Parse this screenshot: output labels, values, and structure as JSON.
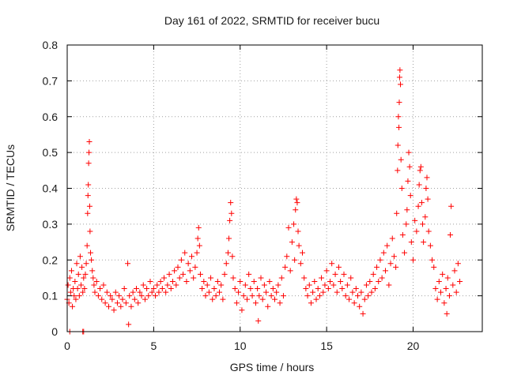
{
  "chart_data": {
    "type": "scatter",
    "title": "Day 161 of 2022, SRMTID for receiver bucu",
    "xlabel": "GPS time / hours",
    "ylabel": "SRMTID / TECUs",
    "xlim": [
      0,
      24
    ],
    "ylim": [
      0,
      0.8
    ],
    "xticks": [
      0,
      5,
      10,
      15,
      20
    ],
    "yticks": [
      0,
      0.1,
      0.2,
      0.3,
      0.4,
      0.5,
      0.6,
      0.7,
      0.8
    ],
    "xtick_labels": [
      "0",
      "5",
      "10",
      "15",
      "20"
    ],
    "ytick_labels": [
      "0",
      "0.1",
      "0.2",
      "0.3",
      "0.4",
      "0.5",
      "0.6",
      "0.7",
      "0.8"
    ],
    "grid": true,
    "marker": "+",
    "color": "#ff0000",
    "series": [
      {
        "name": "SRMTID",
        "points": [
          [
            0.0,
            0.09
          ],
          [
            0.05,
            0.13
          ],
          [
            0.1,
            0.08
          ],
          [
            0.15,
            0.15
          ],
          [
            0.2,
            0.11
          ],
          [
            0.25,
            0.17
          ],
          [
            0.3,
            0.07
          ],
          [
            0.35,
            0.12
          ],
          [
            0.4,
            0.1
          ],
          [
            0.45,
            0.14
          ],
          [
            0.5,
            0.09
          ],
          [
            0.55,
            0.19
          ],
          [
            0.6,
            0.12
          ],
          [
            0.65,
            0.16
          ],
          [
            0.7,
            0.1
          ],
          [
            0.75,
            0.21
          ],
          [
            0.8,
            0.13
          ],
          [
            0.85,
            0.18
          ],
          [
            0.9,
            0.11
          ],
          [
            0.95,
            0.15
          ],
          [
            1.0,
            0.12
          ],
          [
            1.05,
            0.16
          ],
          [
            0.15,
            0.0
          ],
          [
            0.9,
            0.0
          ],
          [
            0.95,
            0.0
          ],
          [
            1.1,
            0.19
          ],
          [
            1.15,
            0.24
          ],
          [
            1.18,
            0.33
          ],
          [
            1.2,
            0.38
          ],
          [
            1.22,
            0.41
          ],
          [
            1.24,
            0.47
          ],
          [
            1.26,
            0.5
          ],
          [
            1.28,
            0.53
          ],
          [
            1.3,
            0.35
          ],
          [
            1.32,
            0.28
          ],
          [
            1.35,
            0.22
          ],
          [
            1.4,
            0.2
          ],
          [
            1.45,
            0.17
          ],
          [
            1.5,
            0.15
          ],
          [
            1.55,
            0.13
          ],
          [
            1.6,
            0.11
          ],
          [
            1.7,
            0.14
          ],
          [
            1.8,
            0.1
          ],
          [
            1.9,
            0.12
          ],
          [
            2.0,
            0.09
          ],
          [
            2.1,
            0.13
          ],
          [
            2.2,
            0.08
          ],
          [
            2.3,
            0.11
          ],
          [
            2.4,
            0.07
          ],
          [
            2.5,
            0.1
          ],
          [
            2.6,
            0.09
          ],
          [
            2.7,
            0.06
          ],
          [
            2.8,
            0.11
          ],
          [
            2.9,
            0.08
          ],
          [
            3.0,
            0.1
          ],
          [
            3.1,
            0.07
          ],
          [
            3.2,
            0.09
          ],
          [
            3.3,
            0.12
          ],
          [
            3.4,
            0.08
          ],
          [
            3.5,
            0.19
          ],
          [
            3.55,
            0.02
          ],
          [
            3.6,
            0.1
          ],
          [
            3.7,
            0.07
          ],
          [
            3.8,
            0.11
          ],
          [
            3.9,
            0.09
          ],
          [
            4.0,
            0.12
          ],
          [
            4.1,
            0.08
          ],
          [
            4.2,
            0.11
          ],
          [
            4.3,
            0.1
          ],
          [
            4.4,
            0.13
          ],
          [
            4.5,
            0.09
          ],
          [
            4.6,
            0.12
          ],
          [
            4.7,
            0.1
          ],
          [
            4.8,
            0.14
          ],
          [
            4.9,
            0.11
          ],
          [
            5.0,
            0.12
          ],
          [
            5.1,
            0.1
          ],
          [
            5.2,
            0.13
          ],
          [
            5.3,
            0.11
          ],
          [
            5.4,
            0.14
          ],
          [
            5.5,
            0.12
          ],
          [
            5.6,
            0.15
          ],
          [
            5.7,
            0.11
          ],
          [
            5.8,
            0.13
          ],
          [
            5.9,
            0.16
          ],
          [
            6.0,
            0.12
          ],
          [
            6.1,
            0.14
          ],
          [
            6.2,
            0.17
          ],
          [
            6.3,
            0.13
          ],
          [
            6.4,
            0.18
          ],
          [
            6.5,
            0.15
          ],
          [
            6.6,
            0.2
          ],
          [
            6.7,
            0.16
          ],
          [
            6.8,
            0.22
          ],
          [
            6.9,
            0.14
          ],
          [
            7.0,
            0.19
          ],
          [
            7.1,
            0.17
          ],
          [
            7.2,
            0.21
          ],
          [
            7.3,
            0.15
          ],
          [
            7.4,
            0.18
          ],
          [
            7.5,
            0.22
          ],
          [
            7.55,
            0.26
          ],
          [
            7.6,
            0.29
          ],
          [
            7.65,
            0.24
          ],
          [
            7.7,
            0.16
          ],
          [
            7.8,
            0.12
          ],
          [
            7.9,
            0.14
          ],
          [
            8.0,
            0.1
          ],
          [
            8.1,
            0.13
          ],
          [
            8.2,
            0.11
          ],
          [
            8.3,
            0.15
          ],
          [
            8.4,
            0.09
          ],
          [
            8.5,
            0.12
          ],
          [
            8.6,
            0.1
          ],
          [
            8.7,
            0.14
          ],
          [
            8.8,
            0.11
          ],
          [
            8.9,
            0.13
          ],
          [
            9.0,
            0.09
          ],
          [
            9.1,
            0.16
          ],
          [
            9.2,
            0.19
          ],
          [
            9.3,
            0.22
          ],
          [
            9.35,
            0.26
          ],
          [
            9.4,
            0.31
          ],
          [
            9.45,
            0.36
          ],
          [
            9.5,
            0.33
          ],
          [
            9.55,
            0.21
          ],
          [
            9.6,
            0.15
          ],
          [
            9.7,
            0.12
          ],
          [
            9.8,
            0.08
          ],
          [
            9.9,
            0.11
          ],
          [
            10.0,
            0.14
          ],
          [
            10.1,
            0.06
          ],
          [
            10.2,
            0.1
          ],
          [
            10.3,
            0.13
          ],
          [
            10.4,
            0.09
          ],
          [
            10.5,
            0.16
          ],
          [
            10.6,
            0.12
          ],
          [
            10.7,
            0.1
          ],
          [
            10.8,
            0.14
          ],
          [
            10.9,
            0.08
          ],
          [
            11.0,
            0.12
          ],
          [
            11.05,
            0.03
          ],
          [
            11.1,
            0.1
          ],
          [
            11.2,
            0.15
          ],
          [
            11.3,
            0.09
          ],
          [
            11.4,
            0.13
          ],
          [
            11.5,
            0.11
          ],
          [
            11.6,
            0.07
          ],
          [
            11.7,
            0.14
          ],
          [
            11.8,
            0.1
          ],
          [
            11.9,
            0.12
          ],
          [
            12.0,
            0.09
          ],
          [
            12.1,
            0.11
          ],
          [
            12.2,
            0.13
          ],
          [
            12.3,
            0.08
          ],
          [
            12.4,
            0.15
          ],
          [
            12.5,
            0.1
          ],
          [
            12.6,
            0.18
          ],
          [
            12.7,
            0.21
          ],
          [
            12.8,
            0.29
          ],
          [
            12.9,
            0.17
          ],
          [
            13.0,
            0.25
          ],
          [
            13.1,
            0.3
          ],
          [
            13.15,
            0.2
          ],
          [
            13.2,
            0.34
          ],
          [
            13.25,
            0.37
          ],
          [
            13.3,
            0.36
          ],
          [
            13.35,
            0.28
          ],
          [
            13.4,
            0.24
          ],
          [
            13.5,
            0.19
          ],
          [
            13.6,
            0.22
          ],
          [
            13.7,
            0.15
          ],
          [
            13.8,
            0.12
          ],
          [
            13.9,
            0.1
          ],
          [
            14.0,
            0.13
          ],
          [
            14.1,
            0.08
          ],
          [
            14.2,
            0.11
          ],
          [
            14.3,
            0.14
          ],
          [
            14.4,
            0.09
          ],
          [
            14.5,
            0.12
          ],
          [
            14.6,
            0.1
          ],
          [
            14.7,
            0.15
          ],
          [
            14.8,
            0.11
          ],
          [
            14.9,
            0.13
          ],
          [
            15.0,
            0.17
          ],
          [
            15.1,
            0.12
          ],
          [
            15.2,
            0.14
          ],
          [
            15.3,
            0.19
          ],
          [
            15.4,
            0.13
          ],
          [
            15.5,
            0.16
          ],
          [
            15.6,
            0.11
          ],
          [
            15.7,
            0.18
          ],
          [
            15.8,
            0.14
          ],
          [
            15.9,
            0.12
          ],
          [
            16.0,
            0.16
          ],
          [
            16.1,
            0.1
          ],
          [
            16.2,
            0.13
          ],
          [
            16.3,
            0.09
          ],
          [
            16.4,
            0.15
          ],
          [
            16.5,
            0.11
          ],
          [
            16.6,
            0.08
          ],
          [
            16.7,
            0.12
          ],
          [
            16.8,
            0.1
          ],
          [
            16.9,
            0.07
          ],
          [
            17.0,
            0.11
          ],
          [
            17.1,
            0.05
          ],
          [
            17.2,
            0.09
          ],
          [
            17.3,
            0.13
          ],
          [
            17.4,
            0.1
          ],
          [
            17.5,
            0.14
          ],
          [
            17.6,
            0.11
          ],
          [
            17.7,
            0.16
          ],
          [
            17.8,
            0.12
          ],
          [
            17.9,
            0.18
          ],
          [
            18.0,
            0.14
          ],
          [
            18.1,
            0.2
          ],
          [
            18.2,
            0.15
          ],
          [
            18.3,
            0.22
          ],
          [
            18.4,
            0.17
          ],
          [
            18.5,
            0.24
          ],
          [
            18.6,
            0.13
          ],
          [
            18.7,
            0.19
          ],
          [
            18.8,
            0.26
          ],
          [
            18.9,
            0.21
          ],
          [
            19.0,
            0.18
          ],
          [
            19.05,
            0.33
          ],
          [
            19.1,
            0.45
          ],
          [
            19.12,
            0.52
          ],
          [
            19.15,
            0.6
          ],
          [
            19.18,
            0.57
          ],
          [
            19.2,
            0.64
          ],
          [
            19.22,
            0.71
          ],
          [
            19.24,
            0.73
          ],
          [
            19.27,
            0.69
          ],
          [
            19.3,
            0.48
          ],
          [
            19.35,
            0.4
          ],
          [
            19.4,
            0.27
          ],
          [
            19.5,
            0.22
          ],
          [
            19.6,
            0.3
          ],
          [
            19.65,
            0.34
          ],
          [
            19.7,
            0.42
          ],
          [
            19.75,
            0.5
          ],
          [
            19.8,
            0.46
          ],
          [
            19.85,
            0.38
          ],
          [
            19.9,
            0.25
          ],
          [
            20.0,
            0.2
          ],
          [
            20.1,
            0.31
          ],
          [
            20.2,
            0.28
          ],
          [
            20.3,
            0.35
          ],
          [
            20.35,
            0.41
          ],
          [
            20.4,
            0.45
          ],
          [
            20.45,
            0.46
          ],
          [
            20.5,
            0.36
          ],
          [
            20.55,
            0.3
          ],
          [
            20.6,
            0.25
          ],
          [
            20.7,
            0.32
          ],
          [
            20.75,
            0.4
          ],
          [
            20.8,
            0.43
          ],
          [
            20.85,
            0.37
          ],
          [
            20.9,
            0.28
          ],
          [
            21.0,
            0.24
          ],
          [
            21.1,
            0.2
          ],
          [
            21.2,
            0.18
          ],
          [
            21.3,
            0.12
          ],
          [
            21.4,
            0.09
          ],
          [
            21.5,
            0.14
          ],
          [
            21.6,
            0.11
          ],
          [
            21.7,
            0.16
          ],
          [
            21.8,
            0.08
          ],
          [
            21.9,
            0.12
          ],
          [
            21.95,
            0.05
          ],
          [
            22.0,
            0.15
          ],
          [
            22.1,
            0.1
          ],
          [
            22.15,
            0.27
          ],
          [
            22.2,
            0.35
          ],
          [
            22.3,
            0.13
          ],
          [
            22.4,
            0.17
          ],
          [
            22.5,
            0.11
          ],
          [
            22.6,
            0.19
          ],
          [
            22.7,
            0.14
          ]
        ]
      }
    ]
  }
}
